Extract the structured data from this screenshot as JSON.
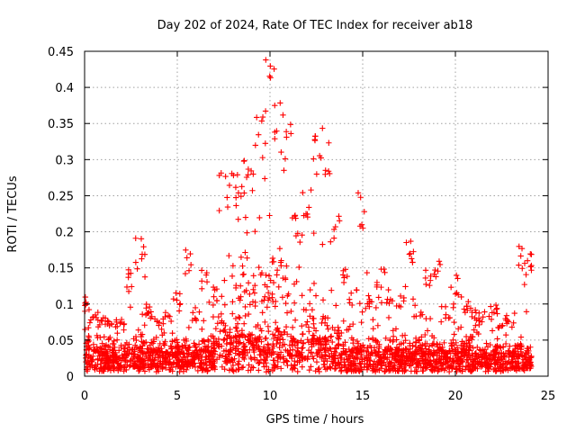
{
  "chart_data": {
    "type": "scatter",
    "title": "Day 202 of 2024, Rate Of TEC Index for receiver ab18",
    "xlabel": "GPS time / hours",
    "ylabel": "ROTI / TECUs",
    "xlim": [
      0,
      25
    ],
    "ylim": [
      0,
      0.45
    ],
    "x_ticks": [
      "0",
      "5",
      "10",
      "15",
      "20",
      "25"
    ],
    "y_ticks": [
      "0",
      "0.05",
      "0.1",
      "0.15",
      "0.2",
      "0.25",
      "0.3",
      "0.35",
      "0.4",
      "0.45"
    ],
    "grid": true,
    "marker": "+",
    "color": "#ff0000",
    "series": [
      {
        "profile": [
          [
            0.0,
            0.03,
            0.06,
            0.11
          ],
          [
            0.5,
            0.02,
            0.045,
            0.09
          ],
          [
            1.0,
            0.02,
            0.045,
            0.09
          ],
          [
            1.5,
            0.02,
            0.04,
            0.08
          ],
          [
            2.0,
            0.02,
            0.04,
            0.08
          ],
          [
            2.5,
            0.02,
            0.05,
            0.15
          ],
          [
            3.0,
            0.025,
            0.06,
            0.195
          ],
          [
            3.5,
            0.02,
            0.05,
            0.1
          ],
          [
            4.0,
            0.02,
            0.045,
            0.085
          ],
          [
            4.5,
            0.02,
            0.045,
            0.09
          ],
          [
            5.0,
            0.025,
            0.05,
            0.12
          ],
          [
            5.5,
            0.025,
            0.05,
            0.175
          ],
          [
            6.0,
            0.02,
            0.045,
            0.095
          ],
          [
            6.5,
            0.025,
            0.05,
            0.15
          ],
          [
            7.0,
            0.03,
            0.06,
            0.13
          ],
          [
            7.5,
            0.04,
            0.1,
            0.285
          ],
          [
            8.0,
            0.04,
            0.12,
            0.29
          ],
          [
            8.5,
            0.04,
            0.12,
            0.3
          ],
          [
            9.0,
            0.04,
            0.13,
            0.32
          ],
          [
            9.5,
            0.04,
            0.14,
            0.36
          ],
          [
            10.0,
            0.05,
            0.16,
            0.44
          ],
          [
            10.5,
            0.05,
            0.18,
            0.41
          ],
          [
            11.0,
            0.04,
            0.12,
            0.35
          ],
          [
            11.5,
            0.03,
            0.09,
            0.23
          ],
          [
            12.0,
            0.04,
            0.1,
            0.27
          ],
          [
            12.5,
            0.04,
            0.1,
            0.37
          ],
          [
            13.0,
            0.03,
            0.08,
            0.33
          ],
          [
            13.5,
            0.03,
            0.07,
            0.225
          ],
          [
            14.0,
            0.02,
            0.06,
            0.15
          ],
          [
            14.5,
            0.02,
            0.05,
            0.12
          ],
          [
            15.0,
            0.025,
            0.06,
            0.255
          ],
          [
            15.5,
            0.02,
            0.05,
            0.11
          ],
          [
            16.0,
            0.02,
            0.05,
            0.15
          ],
          [
            16.5,
            0.02,
            0.05,
            0.12
          ],
          [
            17.0,
            0.02,
            0.05,
            0.12
          ],
          [
            17.5,
            0.02,
            0.05,
            0.195
          ],
          [
            18.0,
            0.02,
            0.045,
            0.1
          ],
          [
            18.5,
            0.02,
            0.045,
            0.15
          ],
          [
            19.0,
            0.02,
            0.045,
            0.17
          ],
          [
            19.5,
            0.02,
            0.045,
            0.1
          ],
          [
            20.0,
            0.02,
            0.045,
            0.14
          ],
          [
            20.5,
            0.02,
            0.045,
            0.11
          ],
          [
            21.0,
            0.02,
            0.045,
            0.1
          ],
          [
            21.5,
            0.02,
            0.04,
            0.09
          ],
          [
            22.0,
            0.02,
            0.045,
            0.1
          ],
          [
            22.5,
            0.015,
            0.04,
            0.08
          ],
          [
            23.0,
            0.015,
            0.04,
            0.085
          ],
          [
            23.5,
            0.02,
            0.045,
            0.18
          ],
          [
            24.0,
            0.02,
            0.04,
            0.17
          ]
        ],
        "profile_columns": [
          "hour",
          "typical_low_roti",
          "typical_roti",
          "peak_roti"
        ]
      }
    ]
  }
}
